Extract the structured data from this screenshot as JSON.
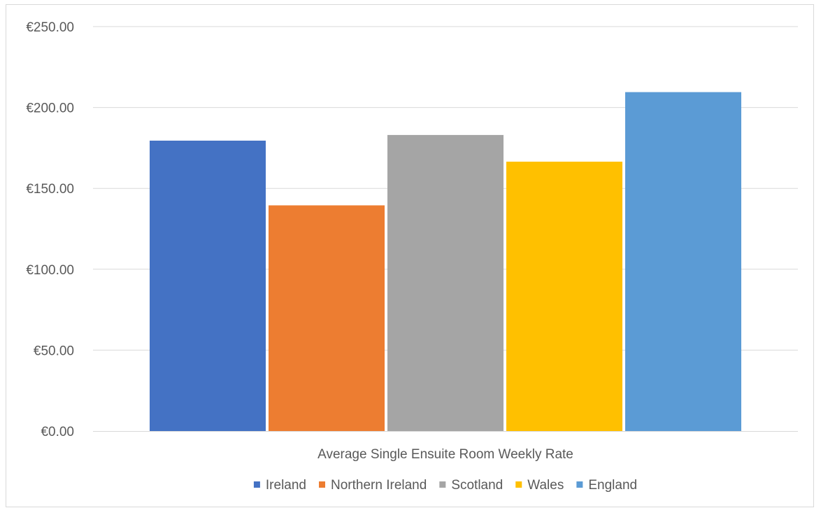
{
  "chart_data": {
    "type": "bar",
    "categories": [
      "Average Single Ensuite Room Weekly Rate"
    ],
    "series": [
      {
        "name": "Ireland",
        "values": [
          179.5
        ],
        "color": "#4472c4"
      },
      {
        "name": "Northern Ireland",
        "values": [
          139.5
        ],
        "color": "#ed7d31"
      },
      {
        "name": "Scotland",
        "values": [
          183.0
        ],
        "color": "#a5a5a5"
      },
      {
        "name": "Wales",
        "values": [
          166.5
        ],
        "color": "#ffc000"
      },
      {
        "name": "England",
        "values": [
          209.5
        ],
        "color": "#5b9bd5"
      }
    ],
    "title": "",
    "xlabel": "",
    "ylabel": "",
    "ylim": [
      0,
      250
    ],
    "yticks": [
      0,
      50,
      100,
      150,
      200,
      250
    ],
    "ytick_labels": [
      "€0.00",
      "€50.00",
      "€100.00",
      "€150.00",
      "€200.00",
      "€250.00"
    ],
    "grid": true,
    "legend_position": "bottom",
    "gridline_color": "#d9d9d9",
    "axis_label_color": "#595959"
  }
}
